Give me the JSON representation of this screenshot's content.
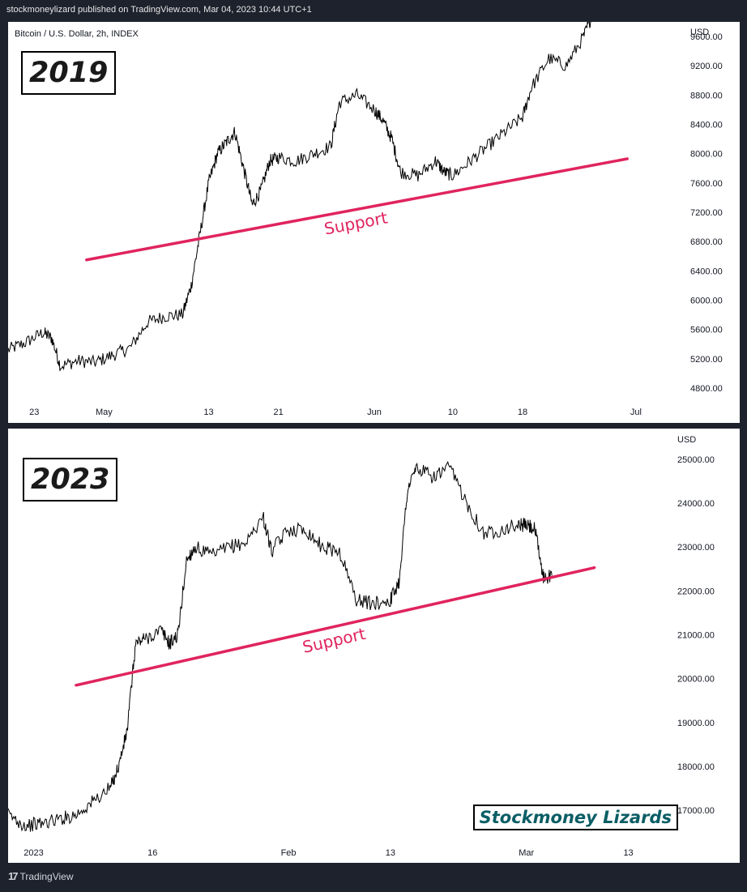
{
  "header": {
    "publisher_text": "stockmoneylizard published on TradingView.com, Mar 04, 2023 10:44 UTC+1"
  },
  "footer": {
    "brand": "TradingView",
    "logo_icon": "tradingview-logo-icon"
  },
  "colors": {
    "price_line": "#000000",
    "support_line": "#e0245e",
    "watermark": "#0b5e65",
    "background": "#1e222d",
    "panel": "#ffffff"
  },
  "watermark": "Stockmoney Lizards",
  "chart_data": [
    {
      "type": "line",
      "title": "Bitcoin / U.S. Dollar, 2h, INDEX",
      "year_label": "2019",
      "currency": "USD",
      "ylim": [
        4600,
        9800
      ],
      "yticks": [
        "9600.00",
        "9200.00",
        "8800.00",
        "8400.00",
        "8000.00",
        "7600.00",
        "7200.00",
        "6800.00",
        "6400.00",
        "6000.00",
        "5600.00",
        "5200.00",
        "4800.00"
      ],
      "xtick_labels": [
        "23",
        "May",
        "13",
        "21",
        "Jun",
        "10",
        "18",
        "Jul"
      ],
      "x_range": [
        "2019-04-20",
        "2019-07-05"
      ],
      "xticks": [
        "2019-04-23",
        "2019-05-01",
        "2019-05-13",
        "2019-05-21",
        "2019-06-01",
        "2019-06-10",
        "2019-06-18",
        "2019-07-01"
      ],
      "series": [
        {
          "name": "",
          "points": [
            [
              "2019-04-20",
              5320
            ],
            [
              "2019-04-22",
              5420
            ],
            [
              "2019-04-24",
              5560
            ],
            [
              "2019-04-25",
              5480
            ],
            [
              "2019-04-26",
              5100
            ],
            [
              "2019-04-28",
              5170
            ],
            [
              "2019-04-30",
              5150
            ],
            [
              "2019-05-02",
              5250
            ],
            [
              "2019-05-04",
              5350
            ],
            [
              "2019-05-06",
              5700
            ],
            [
              "2019-05-08",
              5780
            ],
            [
              "2019-05-10",
              5800
            ],
            [
              "2019-05-11",
              6200
            ],
            [
              "2019-05-12",
              6900
            ],
            [
              "2019-05-13",
              7600
            ],
            [
              "2019-05-14",
              8000
            ],
            [
              "2019-05-15",
              8150
            ],
            [
              "2019-05-16",
              8300
            ],
            [
              "2019-05-17",
              7800
            ],
            [
              "2019-05-18",
              7300
            ],
            [
              "2019-05-19",
              7500
            ],
            [
              "2019-05-20",
              7900
            ],
            [
              "2019-05-21",
              7950
            ],
            [
              "2019-05-23",
              7900
            ],
            [
              "2019-05-25",
              8000
            ],
            [
              "2019-05-27",
              8100
            ],
            [
              "2019-05-28",
              8700
            ],
            [
              "2019-05-30",
              8800
            ],
            [
              "2019-06-01",
              8600
            ],
            [
              "2019-06-02",
              8450
            ],
            [
              "2019-06-03",
              8200
            ],
            [
              "2019-06-04",
              7750
            ],
            [
              "2019-06-06",
              7700
            ],
            [
              "2019-06-08",
              7900
            ],
            [
              "2019-06-09",
              7750
            ],
            [
              "2019-06-10",
              7700
            ],
            [
              "2019-06-12",
              7900
            ],
            [
              "2019-06-14",
              8100
            ],
            [
              "2019-06-16",
              8300
            ],
            [
              "2019-06-18",
              8500
            ],
            [
              "2019-06-19",
              8900
            ],
            [
              "2019-06-21",
              9300
            ],
            [
              "2019-06-23",
              9200
            ],
            [
              "2019-06-25",
              9600
            ],
            [
              "2019-06-26",
              9900
            ]
          ]
        }
      ],
      "support_line": {
        "label": "Support",
        "points": [
          [
            "2019-04-29",
            6550
          ],
          [
            "2019-06-30",
            7930
          ]
        ]
      }
    },
    {
      "type": "line",
      "title": "",
      "year_label": "2023",
      "currency": "USD",
      "ylim": [
        16300,
        25700
      ],
      "yticks": [
        "25000.00",
        "24000.00",
        "23000.00",
        "22000.00",
        "21000.00",
        "20000.00",
        "19000.00",
        "18000.00",
        "17000.00"
      ],
      "xtick_labels": [
        "2023",
        "16",
        "Feb",
        "13",
        "Mar",
        "13"
      ],
      "x_range": [
        "2022-12-30",
        "2023-03-18"
      ],
      "xticks": [
        "2023-01-02",
        "2023-01-16",
        "2023-02-01",
        "2023-02-13",
        "2023-03-01",
        "2023-03-13"
      ],
      "series": [
        {
          "name": "",
          "points": [
            [
              "2022-12-30",
              16900
            ],
            [
              "2023-01-01",
              16650
            ],
            [
              "2023-01-03",
              16700
            ],
            [
              "2023-01-05",
              16800
            ],
            [
              "2023-01-07",
              16900
            ],
            [
              "2023-01-09",
              17200
            ],
            [
              "2023-01-11",
              17500
            ],
            [
              "2023-01-12",
              18000
            ],
            [
              "2023-01-13",
              18800
            ],
            [
              "2023-01-14",
              20800
            ],
            [
              "2023-01-15",
              20900
            ],
            [
              "2023-01-17",
              21100
            ],
            [
              "2023-01-18",
              20800
            ],
            [
              "2023-01-19",
              21000
            ],
            [
              "2023-01-20",
              22700
            ],
            [
              "2023-01-21",
              23000
            ],
            [
              "2023-01-23",
              22800
            ],
            [
              "2023-01-25",
              23000
            ],
            [
              "2023-01-27",
              23100
            ],
            [
              "2023-01-29",
              23700
            ],
            [
              "2023-01-30",
              22900
            ],
            [
              "2023-02-01",
              23400
            ],
            [
              "2023-02-03",
              23400
            ],
            [
              "2023-02-05",
              23000
            ],
            [
              "2023-02-07",
              22900
            ],
            [
              "2023-02-09",
              21800
            ],
            [
              "2023-02-11",
              21700
            ],
            [
              "2023-02-13",
              21800
            ],
            [
              "2023-02-14",
              22200
            ],
            [
              "2023-02-15",
              24300
            ],
            [
              "2023-02-16",
              24800
            ],
            [
              "2023-02-18",
              24600
            ],
            [
              "2023-02-20",
              24800
            ],
            [
              "2023-02-22",
              24000
            ],
            [
              "2023-02-24",
              23300
            ],
            [
              "2023-02-26",
              23400
            ],
            [
              "2023-02-28",
              23500
            ],
            [
              "2023-03-01",
              23500
            ],
            [
              "2023-03-02",
              23400
            ],
            [
              "2023-03-03",
              22300
            ],
            [
              "2023-03-04",
              22350
            ]
          ]
        }
      ],
      "support_line": {
        "label": "Support",
        "points": [
          [
            "2023-01-07",
            19850
          ],
          [
            "2023-03-09",
            22530
          ]
        ]
      }
    }
  ]
}
